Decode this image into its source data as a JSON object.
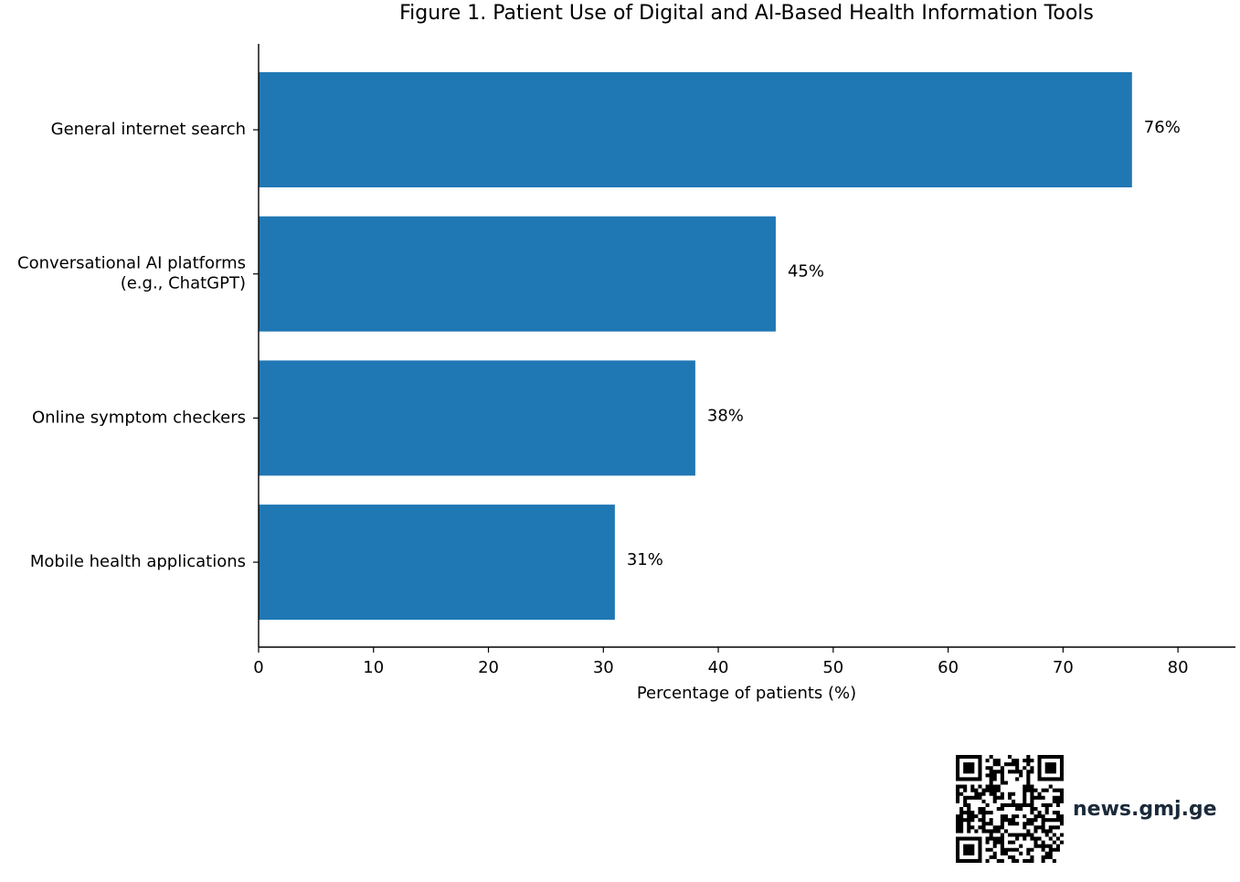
{
  "chart_data": {
    "type": "bar",
    "orientation": "horizontal",
    "title": "Figure 1. Patient Use of Digital and AI-Based Health Information Tools",
    "categories": [
      [
        "General internet search"
      ],
      [
        "Conversational AI platforms",
        "(e.g., ChatGPT)"
      ],
      [
        "Online symptom checkers"
      ],
      [
        "Mobile health applications"
      ]
    ],
    "values": [
      76,
      45,
      38,
      31
    ],
    "data_labels": [
      "76%",
      "45%",
      "38%",
      "31%"
    ],
    "xlabel": "Percentage of patients (%)",
    "ylabel": "",
    "xlim": [
      0,
      85
    ],
    "xticks": [
      0,
      10,
      20,
      30,
      40,
      50,
      60,
      70,
      80
    ],
    "xtick_labels": [
      "0",
      "10",
      "20",
      "30",
      "40",
      "50",
      "60",
      "70",
      "80"
    ],
    "bar_color": "#1f77b4",
    "grid": false,
    "legend": "none"
  },
  "source": {
    "url_text": "news.gmj.ge",
    "qr_icon": "qr-code-icon",
    "text_color": "#1b2a3a"
  }
}
